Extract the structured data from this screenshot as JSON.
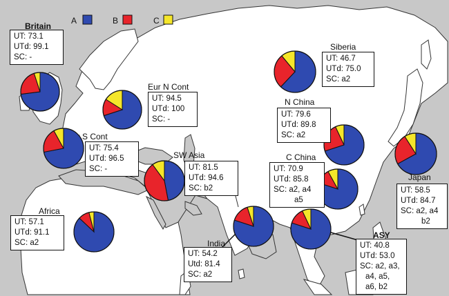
{
  "legend": [
    {
      "key": "A",
      "color": "#2f4ab0"
    },
    {
      "key": "B",
      "color": "#e8242b"
    },
    {
      "key": "C",
      "color": "#f5e62a"
    }
  ],
  "colors": {
    "sea": "#c8c8c8",
    "land": "#ffffff",
    "border": "#333333"
  },
  "regions": [
    {
      "id": "britain",
      "title": "Britain",
      "lines": [
        "UT: 73.1",
        "UTd: 99.1",
        "SC:  -"
      ],
      "shares": {
        "A": 0.73,
        "B": 0.22,
        "C": 0.05
      }
    },
    {
      "id": "eur-n-cont",
      "title": "Eur N Cont",
      "lines": [
        "UT: 94.5",
        "UTd: 100",
        "SC: -"
      ],
      "shares": {
        "A": 0.7,
        "B": 0.14,
        "C": 0.16
      }
    },
    {
      "id": "eur-s-cont",
      "title": "Eur S Cont",
      "lines": [
        "UT: 75.4",
        "UTd: 96.5",
        "SC: -"
      ],
      "shares": {
        "A": 0.72,
        "B": 0.2,
        "C": 0.08
      }
    },
    {
      "id": "sw-asia",
      "title": "SW Asia",
      "lines": [
        "UT: 81.5",
        "UTd: 94.6",
        "SC: b2"
      ],
      "shares": {
        "A": 0.47,
        "B": 0.43,
        "C": 0.1
      }
    },
    {
      "id": "africa",
      "title": "Africa",
      "lines": [
        "UT: 57.1",
        "UTd: 91.1",
        "SC: a2"
      ],
      "shares": {
        "A": 0.87,
        "B": 0.09,
        "C": 0.04
      }
    },
    {
      "id": "siberia",
      "title": "Siberia",
      "lines": [
        "UT: 46.7",
        "UTd: 75.0",
        "SC: a2"
      ],
      "shares": {
        "A": 0.62,
        "B": 0.27,
        "C": 0.11
      }
    },
    {
      "id": "n-china",
      "title": "N China",
      "lines": [
        "UT: 79.6",
        "UTd: 89.8",
        "SC: a2"
      ],
      "shares": {
        "A": 0.7,
        "B": 0.23,
        "C": 0.07
      }
    },
    {
      "id": "c-china",
      "title": "C China",
      "lines": [
        "UT: 70.9",
        "UTd: 85.8",
        "SC: a2, a4",
        "a5"
      ],
      "shares": {
        "A": 0.8,
        "B": 0.12,
        "C": 0.08
      }
    },
    {
      "id": "japan",
      "title": "Japan",
      "lines": [
        "UT: 58.5",
        "UTd: 84.7",
        "SC: a2, a4",
        "b2"
      ],
      "shares": {
        "A": 0.67,
        "B": 0.24,
        "C": 0.09
      }
    },
    {
      "id": "india",
      "title": "India",
      "lines": [
        "UT: 54.2",
        "Utd: 81.4",
        "SC: a2"
      ],
      "shares": {
        "A": 0.8,
        "B": 0.15,
        "C": 0.05
      }
    },
    {
      "id": "asy",
      "title": "ASY",
      "lines": [
        "UT: 40.8",
        "UTd: 53.0",
        "SC: a2, a3,",
        "a4, a5,",
        "a6, b2"
      ],
      "shares": {
        "A": 0.8,
        "B": 0.13,
        "C": 0.07
      }
    }
  ]
}
